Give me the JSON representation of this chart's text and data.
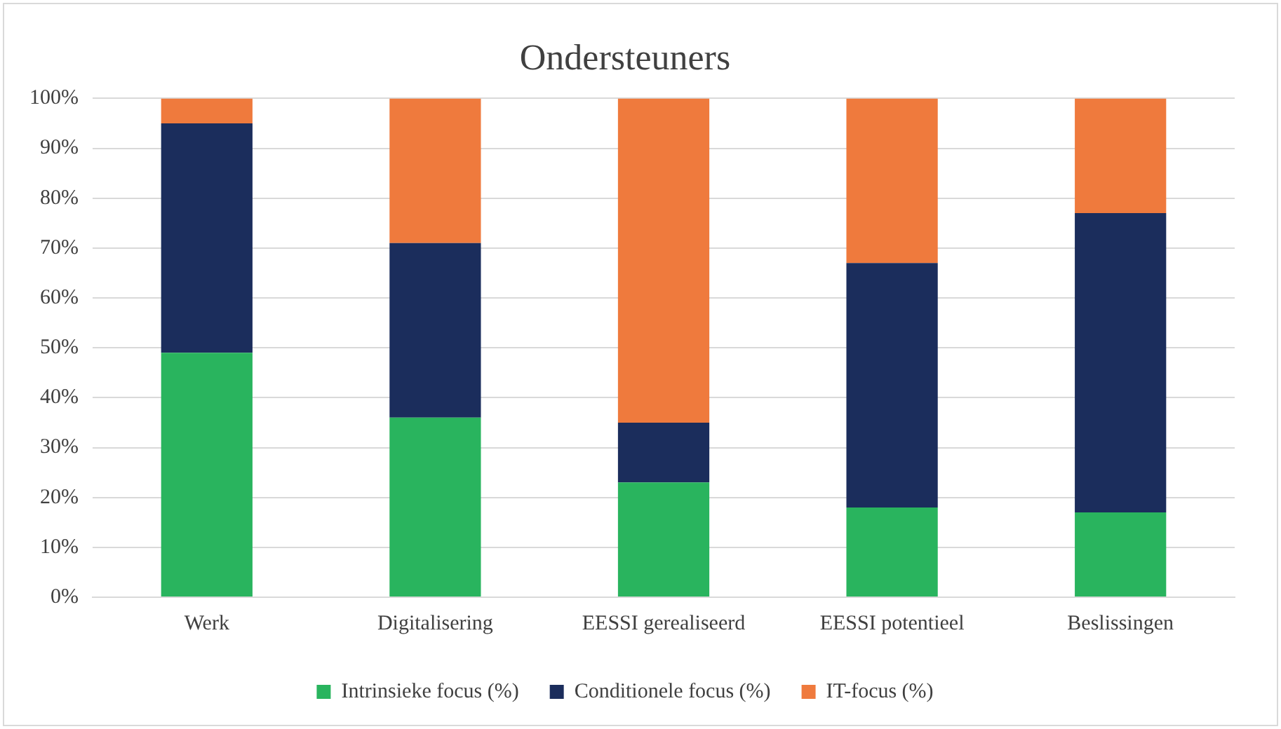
{
  "chart_data": {
    "type": "bar",
    "title": "Ondersteuners",
    "stacked": true,
    "categories": [
      "Werk",
      "Digitalisering",
      "EESSI gerealiseerd",
      "EESSI potentieel",
      "Beslissingen"
    ],
    "series": [
      {
        "name": "Intrinsieke focus (%)",
        "color": "#29b45e",
        "values": [
          49,
          36,
          23,
          18,
          17
        ]
      },
      {
        "name": "Conditionele focus (%)",
        "color": "#1b2d5c",
        "values": [
          46,
          35,
          12,
          49,
          60
        ]
      },
      {
        "name": "IT-focus (%)",
        "color": "#ef7a3d",
        "values": [
          5,
          29,
          65,
          33,
          23
        ]
      }
    ],
    "ylim": [
      0,
      100
    ],
    "yticks": [
      {
        "value": 0,
        "label": "0%"
      },
      {
        "value": 10,
        "label": "10%"
      },
      {
        "value": 20,
        "label": "20%"
      },
      {
        "value": 30,
        "label": "30%"
      },
      {
        "value": 40,
        "label": "40%"
      },
      {
        "value": 50,
        "label": "50%"
      },
      {
        "value": 60,
        "label": "60%"
      },
      {
        "value": 70,
        "label": "70%"
      },
      {
        "value": 80,
        "label": "80%"
      },
      {
        "value": 90,
        "label": "90%"
      },
      {
        "value": 100,
        "label": "100%"
      }
    ],
    "grid": "y",
    "legend": "bottom"
  }
}
